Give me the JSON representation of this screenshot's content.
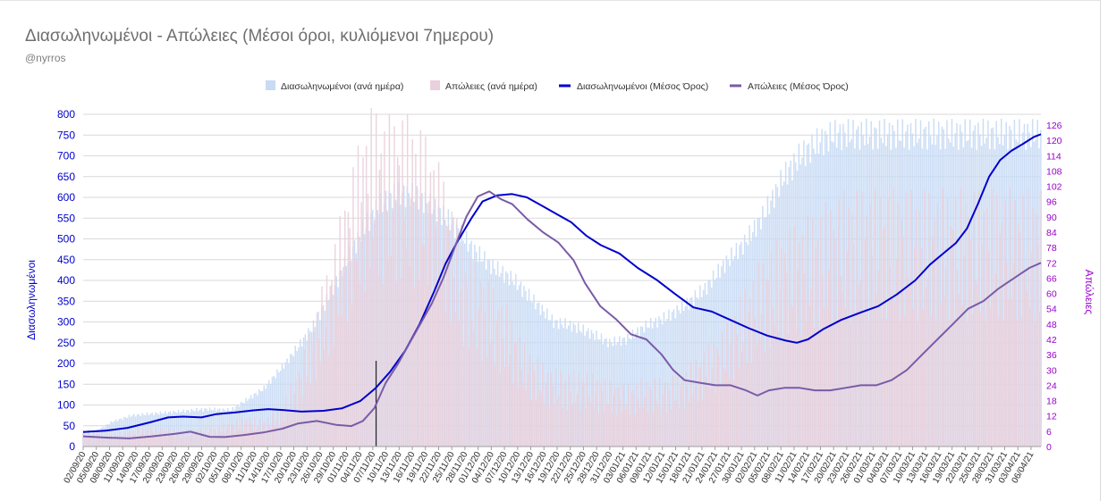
{
  "colors": {
    "cases_bar": "#c9dbf4",
    "deaths_bar": "#ead0dc",
    "cases_line": "#0000cc",
    "deaths_line": "#7a5ba6",
    "left_axis": "#0000cc",
    "right_axis": "#9900cc",
    "grid": "#d9d9d9"
  },
  "chart_data": {
    "type": "bar",
    "title": "Διασωληνωμένοι - Απώλειες (Μέσοι όροι, κυλιόμενοι 7ημερου)",
    "subtitle": "@nyrros",
    "ylabel": "Διασωληνωμένοι",
    "y2label": "Απώλειες",
    "ylim": [
      0,
      800
    ],
    "y2lim": [
      0,
      126
    ],
    "y_ticks": [
      "0",
      "50",
      "100",
      "150",
      "200",
      "250",
      "300",
      "350",
      "400",
      "450",
      "500",
      "550",
      "600",
      "650",
      "700",
      "750",
      "800"
    ],
    "y2_ticks": [
      "0",
      "6",
      "12",
      "18",
      "24",
      "30",
      "36",
      "42",
      "48",
      "54",
      "60",
      "66",
      "72",
      "78",
      "84",
      "90",
      "96",
      "102",
      "108",
      "114",
      "120",
      "126"
    ],
    "grid": true,
    "legend_position": "top",
    "x_tick_labels": [
      "02/09/20",
      "05/09/20",
      "08/09/20",
      "11/09/20",
      "14/09/20",
      "17/09/20",
      "20/09/20",
      "23/09/20",
      "26/09/20",
      "29/09/20",
      "02/10/20",
      "05/10/20",
      "08/10/20",
      "11/10/20",
      "14/10/20",
      "17/10/20",
      "20/10/20",
      "23/10/20",
      "26/10/20",
      "29/10/20",
      "01/11/20",
      "04/11/20",
      "07/11/20",
      "10/11/20",
      "13/11/20",
      "16/11/20",
      "19/11/20",
      "22/11/20",
      "25/11/20",
      "28/11/20",
      "01/12/20",
      "04/12/20",
      "07/12/20",
      "10/12/20",
      "13/12/20",
      "16/12/20",
      "19/12/20",
      "22/12/20",
      "25/12/20",
      "28/12/20",
      "31/12/20",
      "03/01/21",
      "06/01/21",
      "09/01/21",
      "12/01/21",
      "15/01/21",
      "18/01/21",
      "21/01/21",
      "24/01/21",
      "27/01/21",
      "30/01/21",
      "02/02/21",
      "05/02/21",
      "08/02/21",
      "11/02/21",
      "14/02/21",
      "17/02/21",
      "20/02/21",
      "23/02/21",
      "26/02/21",
      "01/03/21",
      "04/03/21",
      "07/03/21",
      "10/03/21",
      "13/03/21",
      "16/03/21",
      "19/03/21",
      "22/03/21",
      "25/03/21",
      "28/03/21",
      "31/03/21",
      "03/04/21",
      "06/04/21"
    ],
    "marker_date": "07/11/20",
    "series": [
      {
        "name": "Διασωληνωμένοι (ανά ημέρα)",
        "kind": "bar",
        "axis": "left",
        "anchors": [
          [
            0,
            32
          ],
          [
            6,
            33
          ],
          [
            18,
            60
          ],
          [
            30,
            75
          ],
          [
            45,
            80
          ],
          [
            60,
            85
          ],
          [
            75,
            90
          ],
          [
            90,
            88
          ],
          [
            110,
            140
          ],
          [
            125,
            210
          ],
          [
            140,
            290
          ],
          [
            152,
            380
          ],
          [
            162,
            460
          ],
          [
            170,
            520
          ],
          [
            178,
            570
          ],
          [
            186,
            600
          ],
          [
            194,
            608
          ],
          [
            200,
            605
          ],
          [
            208,
            590
          ],
          [
            218,
            560
          ],
          [
            228,
            520
          ],
          [
            238,
            470
          ],
          [
            250,
            430
          ],
          [
            262,
            400
          ],
          [
            274,
            350
          ],
          [
            286,
            300
          ],
          [
            298,
            290
          ],
          [
            310,
            270
          ],
          [
            320,
            250
          ],
          [
            330,
            258
          ],
          [
            342,
            290
          ],
          [
            354,
            310
          ],
          [
            366,
            340
          ],
          [
            378,
            380
          ],
          [
            390,
            440
          ],
          [
            402,
            490
          ],
          [
            414,
            560
          ],
          [
            426,
            650
          ],
          [
            436,
            700
          ],
          [
            446,
            730
          ],
          [
            456,
            750
          ],
          [
            463,
            752
          ]
        ]
      },
      {
        "name": "Απώλειες (ανά ημέρα)",
        "kind": "bar",
        "axis": "right",
        "anchors": [
          [
            0,
            5
          ],
          [
            20,
            4
          ],
          [
            40,
            6
          ],
          [
            60,
            5
          ],
          [
            80,
            6
          ],
          [
            100,
            9
          ],
          [
            110,
            8
          ],
          [
            120,
            12
          ],
          [
            130,
            22
          ],
          [
            140,
            38
          ],
          [
            150,
            55
          ],
          [
            160,
            75
          ],
          [
            168,
            90
          ],
          [
            176,
            100
          ],
          [
            184,
            96
          ],
          [
            192,
            98
          ],
          [
            200,
            96
          ],
          [
            210,
            90
          ],
          [
            220,
            78
          ],
          [
            232,
            58
          ],
          [
            244,
            50
          ],
          [
            256,
            42
          ],
          [
            268,
            30
          ],
          [
            280,
            24
          ],
          [
            292,
            22
          ],
          [
            304,
            22
          ],
          [
            316,
            20
          ],
          [
            328,
            18
          ],
          [
            340,
            20
          ],
          [
            352,
            20
          ],
          [
            364,
            22
          ],
          [
            376,
            28
          ],
          [
            388,
            34
          ],
          [
            400,
            45
          ],
          [
            412,
            55
          ],
          [
            424,
            62
          ],
          [
            436,
            66
          ],
          [
            448,
            70
          ],
          [
            463,
            75
          ]
        ]
      },
      {
        "name": "Διασωληνωμένοι (Μέσος Όρος)",
        "kind": "line",
        "axis": "left",
        "anchors": [
          [
            0,
            35
          ],
          [
            12,
            38
          ],
          [
            24,
            45
          ],
          [
            36,
            58
          ],
          [
            46,
            70
          ],
          [
            54,
            72
          ],
          [
            64,
            70
          ],
          [
            72,
            78
          ],
          [
            82,
            82
          ],
          [
            92,
            87
          ],
          [
            100,
            90
          ],
          [
            108,
            88
          ],
          [
            118,
            84
          ],
          [
            130,
            86
          ],
          [
            140,
            92
          ],
          [
            150,
            110
          ],
          [
            158,
            140
          ],
          [
            166,
            180
          ],
          [
            174,
            230
          ],
          [
            182,
            295
          ],
          [
            190,
            375
          ],
          [
            196,
            440
          ],
          [
            202,
            490
          ],
          [
            210,
            550
          ],
          [
            216,
            590
          ],
          [
            224,
            605
          ],
          [
            232,
            608
          ],
          [
            240,
            600
          ],
          [
            248,
            580
          ],
          [
            256,
            560
          ],
          [
            264,
            540
          ],
          [
            272,
            508
          ],
          [
            280,
            485
          ],
          [
            290,
            465
          ],
          [
            300,
            430
          ],
          [
            310,
            402
          ],
          [
            320,
            368
          ],
          [
            330,
            335
          ],
          [
            340,
            325
          ],
          [
            350,
            305
          ],
          [
            360,
            285
          ],
          [
            370,
            267
          ],
          [
            380,
            255
          ],
          [
            386,
            250
          ],
          [
            392,
            258
          ],
          [
            400,
            282
          ],
          [
            410,
            305
          ],
          [
            420,
            322
          ],
          [
            430,
            338
          ],
          [
            440,
            366
          ],
          [
            450,
            400
          ],
          [
            458,
            438
          ],
          [
            466,
            468
          ],
          [
            472,
            490
          ],
          [
            478,
            525
          ],
          [
            484,
            585
          ],
          [
            490,
            650
          ],
          [
            496,
            690
          ],
          [
            502,
            712
          ],
          [
            508,
            728
          ],
          [
            514,
            745
          ],
          [
            518,
            752
          ]
        ]
      },
      {
        "name": "Απώλειες (Μέσος Όρος)",
        "kind": "line",
        "axis": "right",
        "anchors": [
          [
            0,
            4
          ],
          [
            12,
            3.5
          ],
          [
            24,
            3.2
          ],
          [
            36,
            4
          ],
          [
            48,
            5
          ],
          [
            56,
            5.8
          ],
          [
            66,
            3.8
          ],
          [
            74,
            3.7
          ],
          [
            84,
            4.5
          ],
          [
            94,
            5.5
          ],
          [
            104,
            7
          ],
          [
            112,
            9
          ],
          [
            122,
            10
          ],
          [
            132,
            8.5
          ],
          [
            140,
            8
          ],
          [
            146,
            10
          ],
          [
            152,
            15
          ],
          [
            158,
            25
          ],
          [
            164,
            32
          ],
          [
            170,
            40
          ],
          [
            176,
            48
          ],
          [
            182,
            56
          ],
          [
            188,
            66
          ],
          [
            194,
            78
          ],
          [
            200,
            90
          ],
          [
            206,
            98
          ],
          [
            212,
            100
          ],
          [
            218,
            97
          ],
          [
            224,
            95
          ],
          [
            232,
            89
          ],
          [
            240,
            84
          ],
          [
            248,
            80
          ],
          [
            256,
            73
          ],
          [
            262,
            64
          ],
          [
            270,
            55
          ],
          [
            278,
            50
          ],
          [
            286,
            44
          ],
          [
            294,
            42
          ],
          [
            302,
            36
          ],
          [
            308,
            30
          ],
          [
            314,
            26
          ],
          [
            322,
            25
          ],
          [
            330,
            24
          ],
          [
            338,
            24
          ],
          [
            346,
            22
          ],
          [
            352,
            20
          ],
          [
            358,
            22
          ],
          [
            366,
            23
          ],
          [
            374,
            23
          ],
          [
            382,
            22
          ],
          [
            390,
            22
          ],
          [
            398,
            23
          ],
          [
            406,
            24
          ],
          [
            414,
            24
          ],
          [
            422,
            26
          ],
          [
            430,
            30
          ],
          [
            438,
            36
          ],
          [
            446,
            42
          ],
          [
            454,
            48
          ],
          [
            462,
            54
          ],
          [
            470,
            57
          ],
          [
            478,
            62
          ],
          [
            486,
            66
          ],
          [
            494,
            70
          ],
          [
            500,
            72
          ]
        ]
      }
    ]
  }
}
